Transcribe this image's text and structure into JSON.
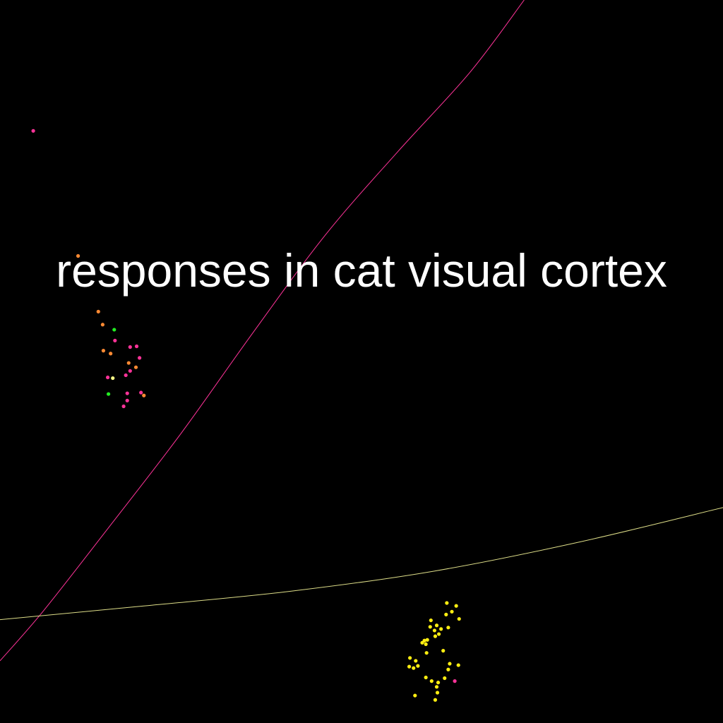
{
  "colors": {
    "background": "#000000",
    "title": "#ffffff",
    "pink": "#ff3399",
    "orange": "#ff8a33",
    "green": "#22ee22",
    "yellow": "#ffee11",
    "pale_yellow": "#ffff88",
    "pink_curve": "#ff3399",
    "yellow_curve": "#dddd88"
  },
  "chart_data": {
    "type": "scatter",
    "title": "responses in cat visual cortex",
    "xlabel": "",
    "ylabel": "",
    "xlim": [
      0,
      100
    ],
    "ylim": [
      0,
      100
    ],
    "grid": false,
    "legend": "none",
    "curves": [
      {
        "color_key": "pink_curve",
        "points": [
          [
            0,
            8.6
          ],
          [
            6,
            15.5
          ],
          [
            15,
            27
          ],
          [
            25,
            40
          ],
          [
            35,
            54
          ],
          [
            45,
            67.5
          ],
          [
            55,
            79
          ],
          [
            65,
            90
          ],
          [
            72.5,
            100
          ]
        ]
      },
      {
        "color_key": "yellow_curve",
        "points": [
          [
            0,
            14.3
          ],
          [
            20,
            16.2
          ],
          [
            40,
            18.2
          ],
          [
            60,
            21
          ],
          [
            80,
            25
          ],
          [
            100,
            29.8
          ]
        ]
      }
    ],
    "points": [
      {
        "x": 4.6,
        "y": 81.9,
        "color_key": "pink"
      },
      {
        "x": 10.8,
        "y": 64.6,
        "color_key": "orange"
      },
      {
        "x": 13.6,
        "y": 56.9,
        "color_key": "orange"
      },
      {
        "x": 14.2,
        "y": 55.1,
        "color_key": "orange"
      },
      {
        "x": 15.8,
        "y": 54.4,
        "color_key": "green"
      },
      {
        "x": 15.9,
        "y": 52.9,
        "color_key": "pink"
      },
      {
        "x": 14.3,
        "y": 51.5,
        "color_key": "orange"
      },
      {
        "x": 15.3,
        "y": 51.1,
        "color_key": "orange"
      },
      {
        "x": 18.0,
        "y": 52.0,
        "color_key": "pink"
      },
      {
        "x": 18.9,
        "y": 52.1,
        "color_key": "pink"
      },
      {
        "x": 19.3,
        "y": 50.5,
        "color_key": "pink"
      },
      {
        "x": 17.8,
        "y": 49.8,
        "color_key": "orange"
      },
      {
        "x": 18.8,
        "y": 49.2,
        "color_key": "orange"
      },
      {
        "x": 18.0,
        "y": 48.7,
        "color_key": "pink"
      },
      {
        "x": 17.4,
        "y": 48.1,
        "color_key": "pink"
      },
      {
        "x": 14.9,
        "y": 47.8,
        "color_key": "pink"
      },
      {
        "x": 15.6,
        "y": 47.7,
        "color_key": "pale_yellow"
      },
      {
        "x": 15.0,
        "y": 45.5,
        "color_key": "green"
      },
      {
        "x": 17.6,
        "y": 45.6,
        "color_key": "pink"
      },
      {
        "x": 19.5,
        "y": 45.7,
        "color_key": "pink"
      },
      {
        "x": 19.9,
        "y": 45.3,
        "color_key": "orange"
      },
      {
        "x": 17.6,
        "y": 44.6,
        "color_key": "pink"
      },
      {
        "x": 17.1,
        "y": 43.8,
        "color_key": "pink"
      },
      {
        "x": 61.8,
        "y": 16.6,
        "color_key": "yellow"
      },
      {
        "x": 63.1,
        "y": 16.2,
        "color_key": "yellow"
      },
      {
        "x": 62.5,
        "y": 15.4,
        "color_key": "yellow"
      },
      {
        "x": 61.7,
        "y": 15.0,
        "color_key": "yellow"
      },
      {
        "x": 63.5,
        "y": 14.4,
        "color_key": "yellow"
      },
      {
        "x": 59.6,
        "y": 14.2,
        "color_key": "yellow"
      },
      {
        "x": 60.4,
        "y": 13.5,
        "color_key": "yellow"
      },
      {
        "x": 59.5,
        "y": 13.3,
        "color_key": "yellow"
      },
      {
        "x": 62.0,
        "y": 13.2,
        "color_key": "yellow"
      },
      {
        "x": 61.0,
        "y": 13.0,
        "color_key": "yellow"
      },
      {
        "x": 60.1,
        "y": 12.8,
        "color_key": "yellow"
      },
      {
        "x": 60.7,
        "y": 12.3,
        "color_key": "yellow"
      },
      {
        "x": 60.2,
        "y": 12.0,
        "color_key": "yellow"
      },
      {
        "x": 59.1,
        "y": 11.5,
        "color_key": "yellow"
      },
      {
        "x": 58.4,
        "y": 11.1,
        "color_key": "yellow"
      },
      {
        "x": 58.9,
        "y": 10.9,
        "color_key": "yellow"
      },
      {
        "x": 58.7,
        "y": 11.4,
        "color_key": "yellow"
      },
      {
        "x": 61.3,
        "y": 10.0,
        "color_key": "yellow"
      },
      {
        "x": 59.0,
        "y": 9.7,
        "color_key": "yellow"
      },
      {
        "x": 56.7,
        "y": 9.0,
        "color_key": "yellow"
      },
      {
        "x": 57.5,
        "y": 8.6,
        "color_key": "yellow"
      },
      {
        "x": 56.6,
        "y": 7.8,
        "color_key": "yellow"
      },
      {
        "x": 57.2,
        "y": 7.6,
        "color_key": "yellow"
      },
      {
        "x": 57.8,
        "y": 7.9,
        "color_key": "yellow"
      },
      {
        "x": 62.2,
        "y": 8.2,
        "color_key": "yellow"
      },
      {
        "x": 63.4,
        "y": 8.0,
        "color_key": "yellow"
      },
      {
        "x": 62.0,
        "y": 7.4,
        "color_key": "yellow"
      },
      {
        "x": 58.9,
        "y": 6.3,
        "color_key": "yellow"
      },
      {
        "x": 59.7,
        "y": 5.8,
        "color_key": "yellow"
      },
      {
        "x": 61.5,
        "y": 6.2,
        "color_key": "yellow"
      },
      {
        "x": 60.6,
        "y": 5.6,
        "color_key": "yellow"
      },
      {
        "x": 60.4,
        "y": 5.0,
        "color_key": "yellow"
      },
      {
        "x": 57.4,
        "y": 3.8,
        "color_key": "yellow"
      },
      {
        "x": 60.5,
        "y": 4.2,
        "color_key": "yellow"
      },
      {
        "x": 60.2,
        "y": 3.2,
        "color_key": "yellow"
      },
      {
        "x": 62.9,
        "y": 5.8,
        "color_key": "pink"
      }
    ]
  }
}
